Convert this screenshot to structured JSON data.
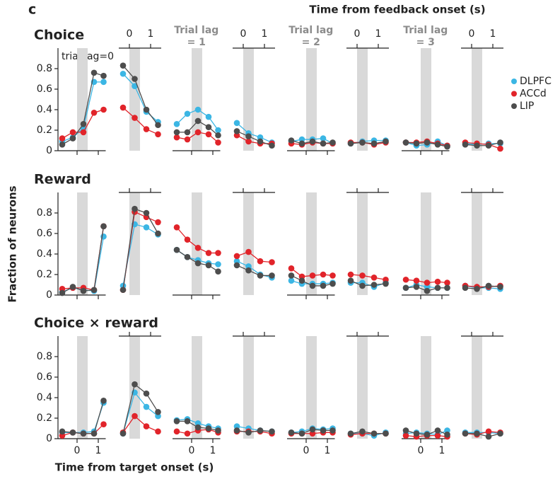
{
  "panel_label": "c",
  "chart_data": {
    "type": "line",
    "x_label": "Time from target onset (s)",
    "x2_label": "Time from feedback onset (s)",
    "y_label": "Fraction of neurons",
    "annotation": "trial lag=0",
    "ylim": [
      0,
      1
    ],
    "yticks": [
      0,
      0.2,
      0.4,
      0.6,
      0.8
    ],
    "highlight": [
      0,
      0.5
    ],
    "epochs": {
      "target": {
        "xlim": [
          -0.9,
          1.35
        ],
        "xticks": [
          0,
          1
        ],
        "x": [
          -0.7,
          -0.2,
          0.3,
          0.8,
          1.25
        ]
      },
      "feedback": {
        "xlim": [
          -0.5,
          1.5
        ],
        "xticks": [
          0,
          1
        ],
        "x": [
          -0.3,
          0.25,
          0.8,
          1.35
        ]
      }
    },
    "columns": [
      {
        "epoch": "target"
      },
      {
        "epoch": "feedback"
      },
      {
        "epoch": "target",
        "lag_label": [
          "Trial lag",
          "= 1"
        ]
      },
      {
        "epoch": "feedback"
      },
      {
        "epoch": "target",
        "lag_label": [
          "Trial lag",
          "= 2"
        ]
      },
      {
        "epoch": "feedback"
      },
      {
        "epoch": "target",
        "lag_label": [
          "Trial lag",
          "= 3"
        ]
      },
      {
        "epoch": "feedback"
      }
    ],
    "series": [
      {
        "name": "DLPFC",
        "color": "#3bb6e4"
      },
      {
        "name": "ACCd",
        "color": "#e1242a"
      },
      {
        "name": "LIP",
        "color": "#4d4d4d"
      }
    ],
    "rows": [
      {
        "title": "Choice",
        "panels": [
          [
            [
              0.09,
              0.13,
              0.22,
              0.67,
              0.67
            ],
            [
              0.12,
              0.18,
              0.18,
              0.37,
              0.4
            ],
            [
              0.06,
              0.12,
              0.26,
              0.76,
              0.73
            ]
          ],
          [
            [
              0.75,
              0.63,
              0.38,
              0.28
            ],
            [
              0.42,
              0.32,
              0.21,
              0.16
            ],
            [
              0.83,
              0.7,
              0.4,
              0.25
            ]
          ],
          [
            [
              0.26,
              0.36,
              0.4,
              0.33,
              0.2
            ],
            [
              0.13,
              0.11,
              0.18,
              0.16,
              0.08
            ],
            [
              0.18,
              0.18,
              0.29,
              0.23,
              0.15
            ]
          ],
          [
            [
              0.27,
              0.17,
              0.13,
              0.08
            ],
            [
              0.15,
              0.09,
              0.07,
              0.07
            ],
            [
              0.19,
              0.14,
              0.09,
              0.05
            ]
          ],
          [
            [
              0.09,
              0.11,
              0.11,
              0.12,
              0.07
            ],
            [
              0.07,
              0.06,
              0.08,
              0.07,
              0.07
            ],
            [
              0.1,
              0.07,
              0.09,
              0.07,
              0.08
            ]
          ],
          [
            [
              0.07,
              0.09,
              0.1,
              0.1
            ],
            [
              0.08,
              0.08,
              0.06,
              0.08
            ],
            [
              0.07,
              0.08,
              0.07,
              0.09
            ]
          ],
          [
            [
              0.08,
              0.05,
              0.06,
              0.09,
              0.05
            ],
            [
              0.08,
              0.08,
              0.09,
              0.07,
              0.05
            ],
            [
              0.08,
              0.07,
              0.08,
              0.06,
              0.04
            ]
          ],
          [
            [
              0.07,
              0.06,
              0.07,
              0.07
            ],
            [
              0.08,
              0.07,
              0.06,
              0.02
            ],
            [
              0.06,
              0.05,
              0.05,
              0.08
            ]
          ]
        ]
      },
      {
        "title": "Reward",
        "panels": [
          [
            [
              0.03,
              0.07,
              0.05,
              0.04,
              0.57
            ],
            [
              0.06,
              0.07,
              0.07,
              0.05,
              0.67
            ],
            [
              0.02,
              0.08,
              0.04,
              0.05,
              0.67
            ]
          ],
          [
            [
              0.09,
              0.69,
              0.66,
              0.59
            ],
            [
              0.05,
              0.81,
              0.76,
              0.71
            ],
            [
              0.05,
              0.84,
              0.8,
              0.6
            ]
          ],
          [
            [
              0.44,
              0.37,
              0.34,
              0.31,
              0.3
            ],
            [
              0.66,
              0.54,
              0.46,
              0.41,
              0.41
            ],
            [
              0.44,
              0.37,
              0.31,
              0.29,
              0.23
            ]
          ],
          [
            [
              0.33,
              0.28,
              0.2,
              0.17
            ],
            [
              0.38,
              0.42,
              0.33,
              0.32
            ],
            [
              0.29,
              0.24,
              0.19,
              0.19
            ]
          ],
          [
            [
              0.14,
              0.11,
              0.11,
              0.11,
              0.12
            ],
            [
              0.26,
              0.18,
              0.19,
              0.2,
              0.19
            ],
            [
              0.19,
              0.14,
              0.09,
              0.09,
              0.11
            ]
          ],
          [
            [
              0.12,
              0.12,
              0.08,
              0.12
            ],
            [
              0.2,
              0.19,
              0.17,
              0.15
            ],
            [
              0.14,
              0.09,
              0.1,
              0.11
            ]
          ],
          [
            [
              0.07,
              0.1,
              0.08,
              0.07,
              0.07
            ],
            [
              0.15,
              0.14,
              0.12,
              0.13,
              0.12
            ],
            [
              0.07,
              0.08,
              0.04,
              0.07,
              0.07
            ]
          ],
          [
            [
              0.09,
              0.07,
              0.07,
              0.06
            ],
            [
              0.09,
              0.08,
              0.08,
              0.09
            ],
            [
              0.07,
              0.06,
              0.09,
              0.08
            ]
          ]
        ]
      },
      {
        "title": "Choice × reward",
        "panels": [
          [
            [
              0.06,
              0.06,
              0.06,
              0.07,
              0.35
            ],
            [
              0.03,
              0.06,
              0.05,
              0.05,
              0.14
            ],
            [
              0.07,
              0.06,
              0.05,
              0.05,
              0.37
            ]
          ],
          [
            [
              0.05,
              0.45,
              0.31,
              0.22
            ],
            [
              0.06,
              0.22,
              0.12,
              0.07
            ],
            [
              0.05,
              0.53,
              0.44,
              0.26
            ]
          ],
          [
            [
              0.18,
              0.19,
              0.15,
              0.12,
              0.1
            ],
            [
              0.07,
              0.05,
              0.08,
              0.09,
              0.06
            ],
            [
              0.17,
              0.17,
              0.11,
              0.1,
              0.08
            ]
          ],
          [
            [
              0.12,
              0.1,
              0.08,
              0.07
            ],
            [
              0.07,
              0.07,
              0.07,
              0.05
            ],
            [
              0.08,
              0.06,
              0.08,
              0.07
            ]
          ],
          [
            [
              0.06,
              0.07,
              0.1,
              0.09,
              0.1
            ],
            [
              0.05,
              0.05,
              0.05,
              0.06,
              0.06
            ],
            [
              0.06,
              0.05,
              0.09,
              0.08,
              0.08
            ]
          ],
          [
            [
              0.05,
              0.05,
              0.03,
              0.06
            ],
            [
              0.04,
              0.05,
              0.05,
              0.05
            ],
            [
              0.05,
              0.07,
              0.05,
              0.05
            ]
          ],
          [
            [
              0.05,
              0.06,
              0.05,
              0.04,
              0.08
            ],
            [
              0.03,
              0.02,
              0.03,
              0.03,
              0.02
            ],
            [
              0.08,
              0.05,
              0.04,
              0.08,
              0.04
            ]
          ],
          [
            [
              0.06,
              0.06,
              0.06,
              0.05
            ],
            [
              0.05,
              0.04,
              0.07,
              0.06
            ],
            [
              0.05,
              0.05,
              0.02,
              0.05
            ]
          ]
        ]
      }
    ]
  }
}
